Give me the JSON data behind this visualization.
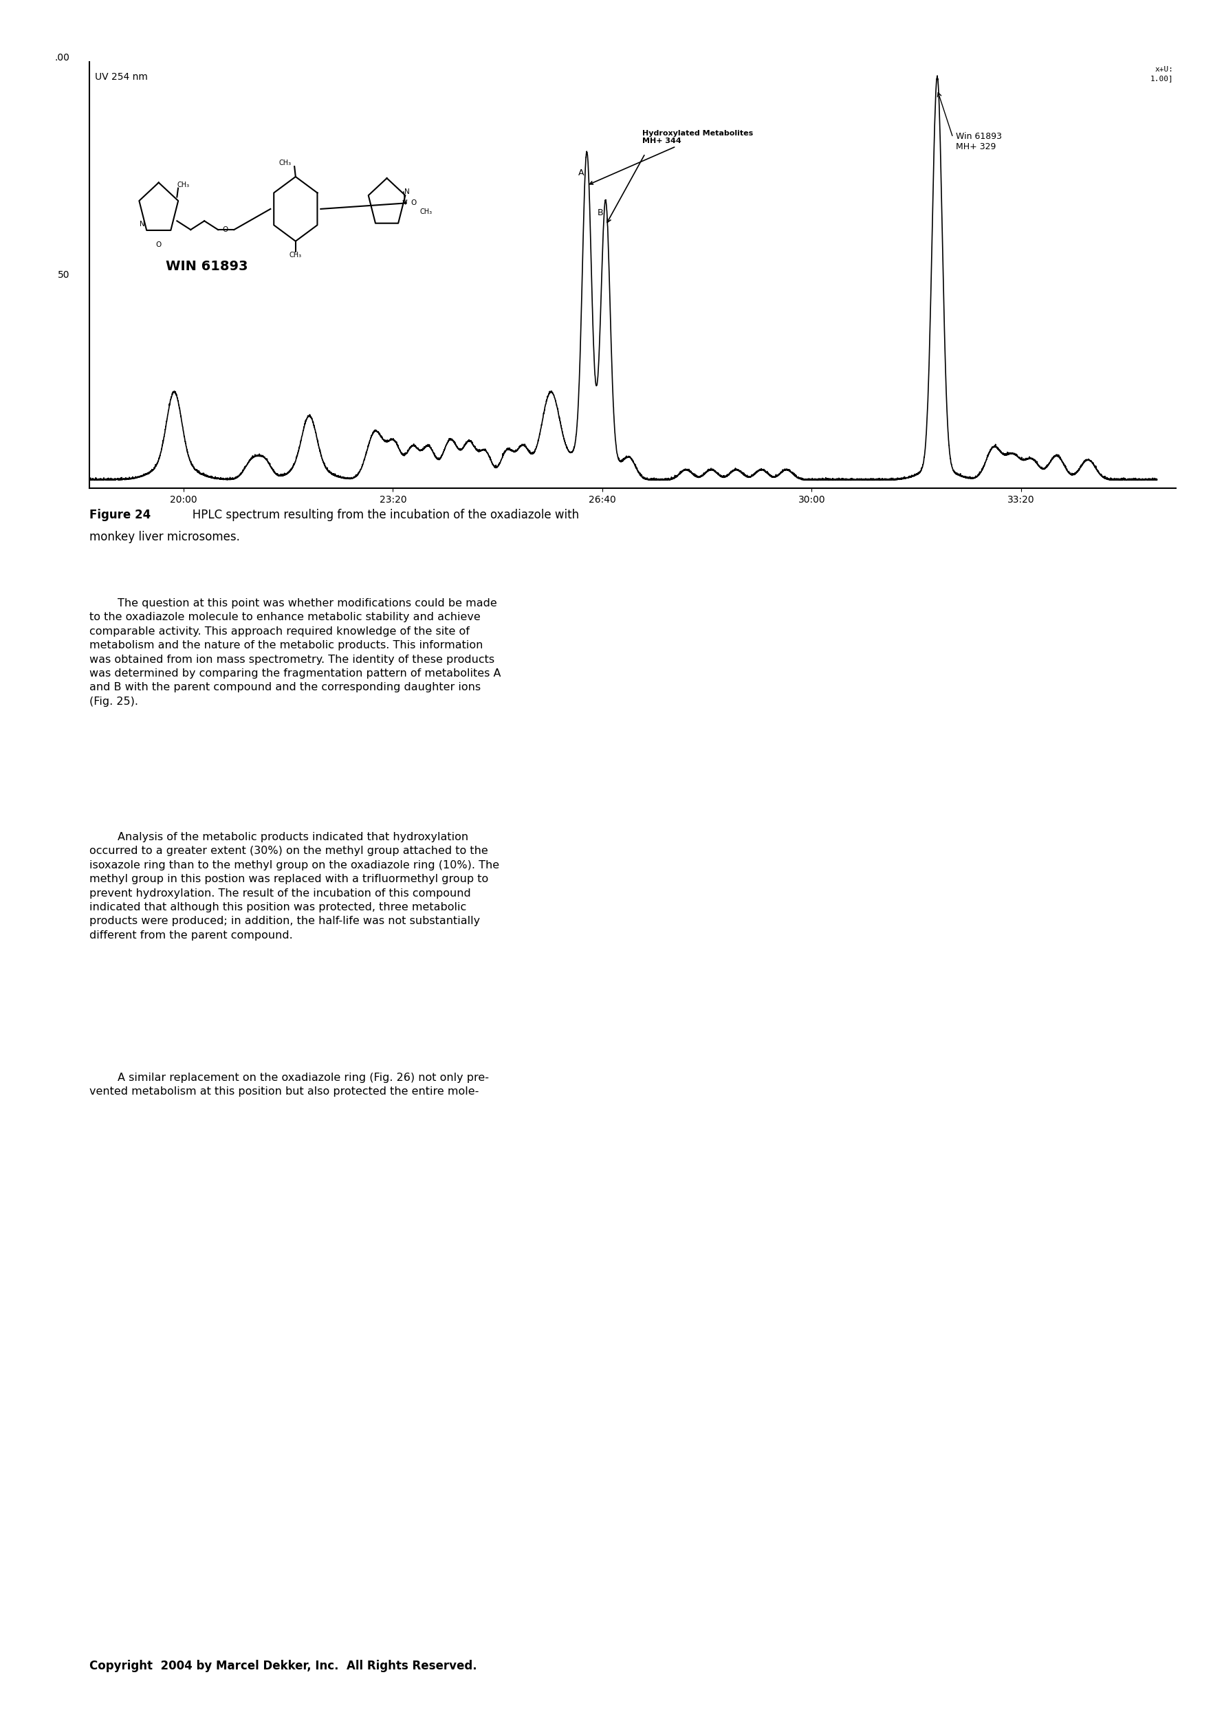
{
  "uv_label": "UV 254 nm",
  "y_top_label": ".00",
  "y_mid_label": "50",
  "x_ticks": [
    "20:00",
    "23:20",
    "26:40",
    "30:00",
    "33:20"
  ],
  "x_tick_vals": [
    20.0,
    23.333,
    26.667,
    30.0,
    33.333
  ],
  "win_label": "WIN 61893",
  "metabolite_label": "Hydroxylated Metabolites\nMH+ 344",
  "win_peak_label": "Win 61893\nMH+ 329",
  "scale_label": "x+U:\n1.00]",
  "point_A": "A",
  "point_B": "B",
  "background_color": "#ffffff",
  "caption_bold": "Figure 24",
  "caption_normal": "   HPLC spectrum resulting from the incubation of the oxadiazole with\nmonkey liver microsomes.",
  "para1": "        The question at this point was whether modifications could be made\nto the oxadiazole molecule to enhance metabolic stability and achieve\ncomparable activity. This approach required knowledge of the site of\nmetabolism and the nature of the metabolic products. This information\nwas obtained from ion mass spectrometry. The identity of these products\nwas determined by comparing the fragmentation pattern of metabolites A\nand B with the parent compound and the corresponding daughter ions\n(Fig. 25).",
  "para2": "        Analysis of the metabolic products indicated that hydroxylation\noccurred to a greater extent (30%) on the methyl group attached to the\nisoxazole ring than to the methyl group on the oxadiazole ring (10%). The\nmethyl group in this postion was replaced with a trifluormethyl group to\nprevent hydroxylation. The result of the incubation of this compound\nindicated that although this position was protected, three metabolic\nproducts were produced; in addition, the half-life was not substantially\ndifferent from the parent compound.",
  "para3": "        A similar replacement on the oxadiazole ring (Fig. 26) not only pre-\nvented metabolism at this position but also protected the entire mole-",
  "copyright_text": "Copyright  2004 by Marcel Dekker, Inc.  All Rights Reserved."
}
